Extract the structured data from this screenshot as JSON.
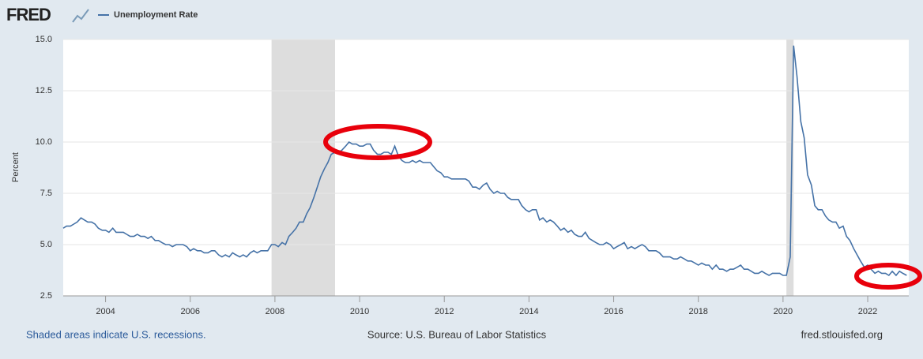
{
  "logo": "FRED",
  "chart_data": {
    "type": "line",
    "ylabel": "Percent",
    "series": [
      {
        "name": "Unemployment Rate",
        "color": "#4572a7",
        "values": [
          5.8,
          5.9,
          5.9,
          6.0,
          6.1,
          6.3,
          6.2,
          6.1,
          6.1,
          6.0,
          5.8,
          5.7,
          5.7,
          5.6,
          5.8,
          5.6,
          5.6,
          5.6,
          5.5,
          5.4,
          5.4,
          5.5,
          5.4,
          5.4,
          5.3,
          5.4,
          5.2,
          5.2,
          5.1,
          5.0,
          5.0,
          4.9,
          5.0,
          5.0,
          5.0,
          4.9,
          4.7,
          4.8,
          4.7,
          4.7,
          4.6,
          4.6,
          4.7,
          4.7,
          4.5,
          4.4,
          4.5,
          4.4,
          4.6,
          4.5,
          4.4,
          4.5,
          4.4,
          4.6,
          4.7,
          4.6,
          4.7,
          4.7,
          4.7,
          5.0,
          5.0,
          4.9,
          5.1,
          5.0,
          5.4,
          5.6,
          5.8,
          6.1,
          6.1,
          6.5,
          6.8,
          7.3,
          7.8,
          8.3,
          8.7,
          9.0,
          9.4,
          9.5,
          9.5,
          9.6,
          9.8,
          10.0,
          9.9,
          9.9,
          9.8,
          9.8,
          9.9,
          9.9,
          9.6,
          9.4,
          9.4,
          9.5,
          9.5,
          9.4,
          9.8,
          9.3,
          9.1,
          9.0,
          9.0,
          9.1,
          9.0,
          9.1,
          9.0,
          9.0,
          9.0,
          8.8,
          8.6,
          8.5,
          8.3,
          8.3,
          8.2,
          8.2,
          8.2,
          8.2,
          8.2,
          8.1,
          7.8,
          7.8,
          7.7,
          7.9,
          8.0,
          7.7,
          7.5,
          7.6,
          7.5,
          7.5,
          7.3,
          7.2,
          7.2,
          7.2,
          6.9,
          6.7,
          6.6,
          6.7,
          6.7,
          6.2,
          6.3,
          6.1,
          6.2,
          6.1,
          5.9,
          5.7,
          5.8,
          5.6,
          5.7,
          5.5,
          5.4,
          5.4,
          5.6,
          5.3,
          5.2,
          5.1,
          5.0,
          5.0,
          5.1,
          5.0,
          4.8,
          4.9,
          5.0,
          5.1,
          4.8,
          4.9,
          4.8,
          4.9,
          5.0,
          4.9,
          4.7,
          4.7,
          4.7,
          4.6,
          4.4,
          4.4,
          4.4,
          4.3,
          4.3,
          4.4,
          4.3,
          4.2,
          4.2,
          4.1,
          4.0,
          4.1,
          4.0,
          4.0,
          3.8,
          4.0,
          3.8,
          3.8,
          3.7,
          3.8,
          3.8,
          3.9,
          4.0,
          3.8,
          3.8,
          3.7,
          3.6,
          3.6,
          3.7,
          3.6,
          3.5,
          3.6,
          3.6,
          3.6,
          3.5,
          3.5,
          4.4,
          14.7,
          13.2,
          11.0,
          10.2,
          8.4,
          7.9,
          6.9,
          6.7,
          6.7,
          6.4,
          6.2,
          6.1,
          6.1,
          5.8,
          5.9,
          5.4,
          5.2,
          4.8,
          4.5,
          4.2,
          3.9,
          4.0,
          3.8,
          3.6,
          3.7,
          3.6,
          3.6,
          3.5,
          3.7,
          3.5,
          3.7,
          3.6,
          3.5
        ]
      }
    ],
    "x": [
      2003.0,
      2003.08,
      2003.17,
      2003.25,
      2003.33,
      2003.42,
      2003.5,
      2003.58,
      2003.67,
      2003.75,
      2003.83,
      2003.92,
      2004.0,
      2004.08,
      2004.17,
      2004.25,
      2004.33,
      2004.42,
      2004.5,
      2004.58,
      2004.67,
      2004.75,
      2004.83,
      2004.92,
      2005.0,
      2005.08,
      2005.17,
      2005.25,
      2005.33,
      2005.42,
      2005.5,
      2005.58,
      2005.67,
      2005.75,
      2005.83,
      2005.92,
      2006.0,
      2006.08,
      2006.17,
      2006.25,
      2006.33,
      2006.42,
      2006.5,
      2006.58,
      2006.67,
      2006.75,
      2006.83,
      2006.92,
      2007.0,
      2007.08,
      2007.17,
      2007.25,
      2007.33,
      2007.42,
      2007.5,
      2007.58,
      2007.67,
      2007.75,
      2007.83,
      2007.92,
      2008.0,
      2008.08,
      2008.17,
      2008.25,
      2008.33,
      2008.42,
      2008.5,
      2008.58,
      2008.67,
      2008.75,
      2008.83,
      2008.92,
      2009.0,
      2009.08,
      2009.17,
      2009.25,
      2009.33,
      2009.42,
      2009.5,
      2009.58,
      2009.67,
      2009.75,
      2009.83,
      2009.92,
      2010.0,
      2010.08,
      2010.17,
      2010.25,
      2010.33,
      2010.42,
      2010.5,
      2010.58,
      2010.67,
      2010.75,
      2010.83,
      2010.92,
      2011.0,
      2011.08,
      2011.17,
      2011.25,
      2011.33,
      2011.42,
      2011.5,
      2011.58,
      2011.67,
      2011.75,
      2011.83,
      2011.92,
      2012.0,
      2012.08,
      2012.17,
      2012.25,
      2012.33,
      2012.42,
      2012.5,
      2012.58,
      2012.67,
      2012.75,
      2012.83,
      2012.92,
      2013.0,
      2013.08,
      2013.17,
      2013.25,
      2013.33,
      2013.42,
      2013.5,
      2013.58,
      2013.67,
      2013.75,
      2013.83,
      2013.92,
      2014.0,
      2014.08,
      2014.17,
      2014.25,
      2014.33,
      2014.42,
      2014.5,
      2014.58,
      2014.67,
      2014.75,
      2014.83,
      2014.92,
      2015.0,
      2015.08,
      2015.17,
      2015.25,
      2015.33,
      2015.42,
      2015.5,
      2015.58,
      2015.67,
      2015.75,
      2015.83,
      2015.92,
      2016.0,
      2016.08,
      2016.17,
      2016.25,
      2016.33,
      2016.42,
      2016.5,
      2016.58,
      2016.67,
      2016.75,
      2016.83,
      2016.92,
      2017.0,
      2017.08,
      2017.17,
      2017.25,
      2017.33,
      2017.42,
      2017.5,
      2017.58,
      2017.67,
      2017.75,
      2017.83,
      2017.92,
      2018.0,
      2018.08,
      2018.17,
      2018.25,
      2018.33,
      2018.42,
      2018.5,
      2018.58,
      2018.67,
      2018.75,
      2018.83,
      2018.92,
      2019.0,
      2019.08,
      2019.17,
      2019.25,
      2019.33,
      2019.42,
      2019.5,
      2019.58,
      2019.67,
      2019.75,
      2019.83,
      2019.92,
      2020.0,
      2020.08,
      2020.17,
      2020.25,
      2020.33,
      2020.42,
      2020.5,
      2020.58,
      2020.67,
      2020.75,
      2020.83,
      2020.92,
      2021.0,
      2021.08,
      2021.17,
      2021.25,
      2021.33,
      2021.42,
      2021.5,
      2021.58,
      2021.67,
      2021.75,
      2021.83,
      2021.92,
      2022.0,
      2022.08,
      2022.17,
      2022.25,
      2022.33,
      2022.42,
      2022.5,
      2022.58,
      2022.67,
      2022.75,
      2022.83,
      2022.92
    ],
    "xlim": [
      2003,
      2022.97
    ],
    "xticks": [
      2004,
      2006,
      2008,
      2010,
      2012,
      2014,
      2016,
      2018,
      2020,
      2022
    ],
    "ylim": [
      2.5,
      15
    ],
    "yticks": [
      2.5,
      {
        "value": 5,
        "label": "5.0"
      },
      12.5,
      {
        "value": 7.5,
        "label": "7.5"
      },
      {
        "value": 10,
        "label": "10.0"
      },
      {
        "value": 15,
        "label": "15.0"
      }
    ],
    "recessions": [
      [
        2007.92,
        2009.42
      ],
      [
        2020.08,
        2020.25
      ]
    ],
    "recession_color": "#dddddd",
    "grid": true
  },
  "footer": {
    "note": "Shaded areas indicate U.S. recessions.",
    "source": "Source: U.S. Bureau of Labor Statistics",
    "site": "fred.stlouisfed.org"
  }
}
